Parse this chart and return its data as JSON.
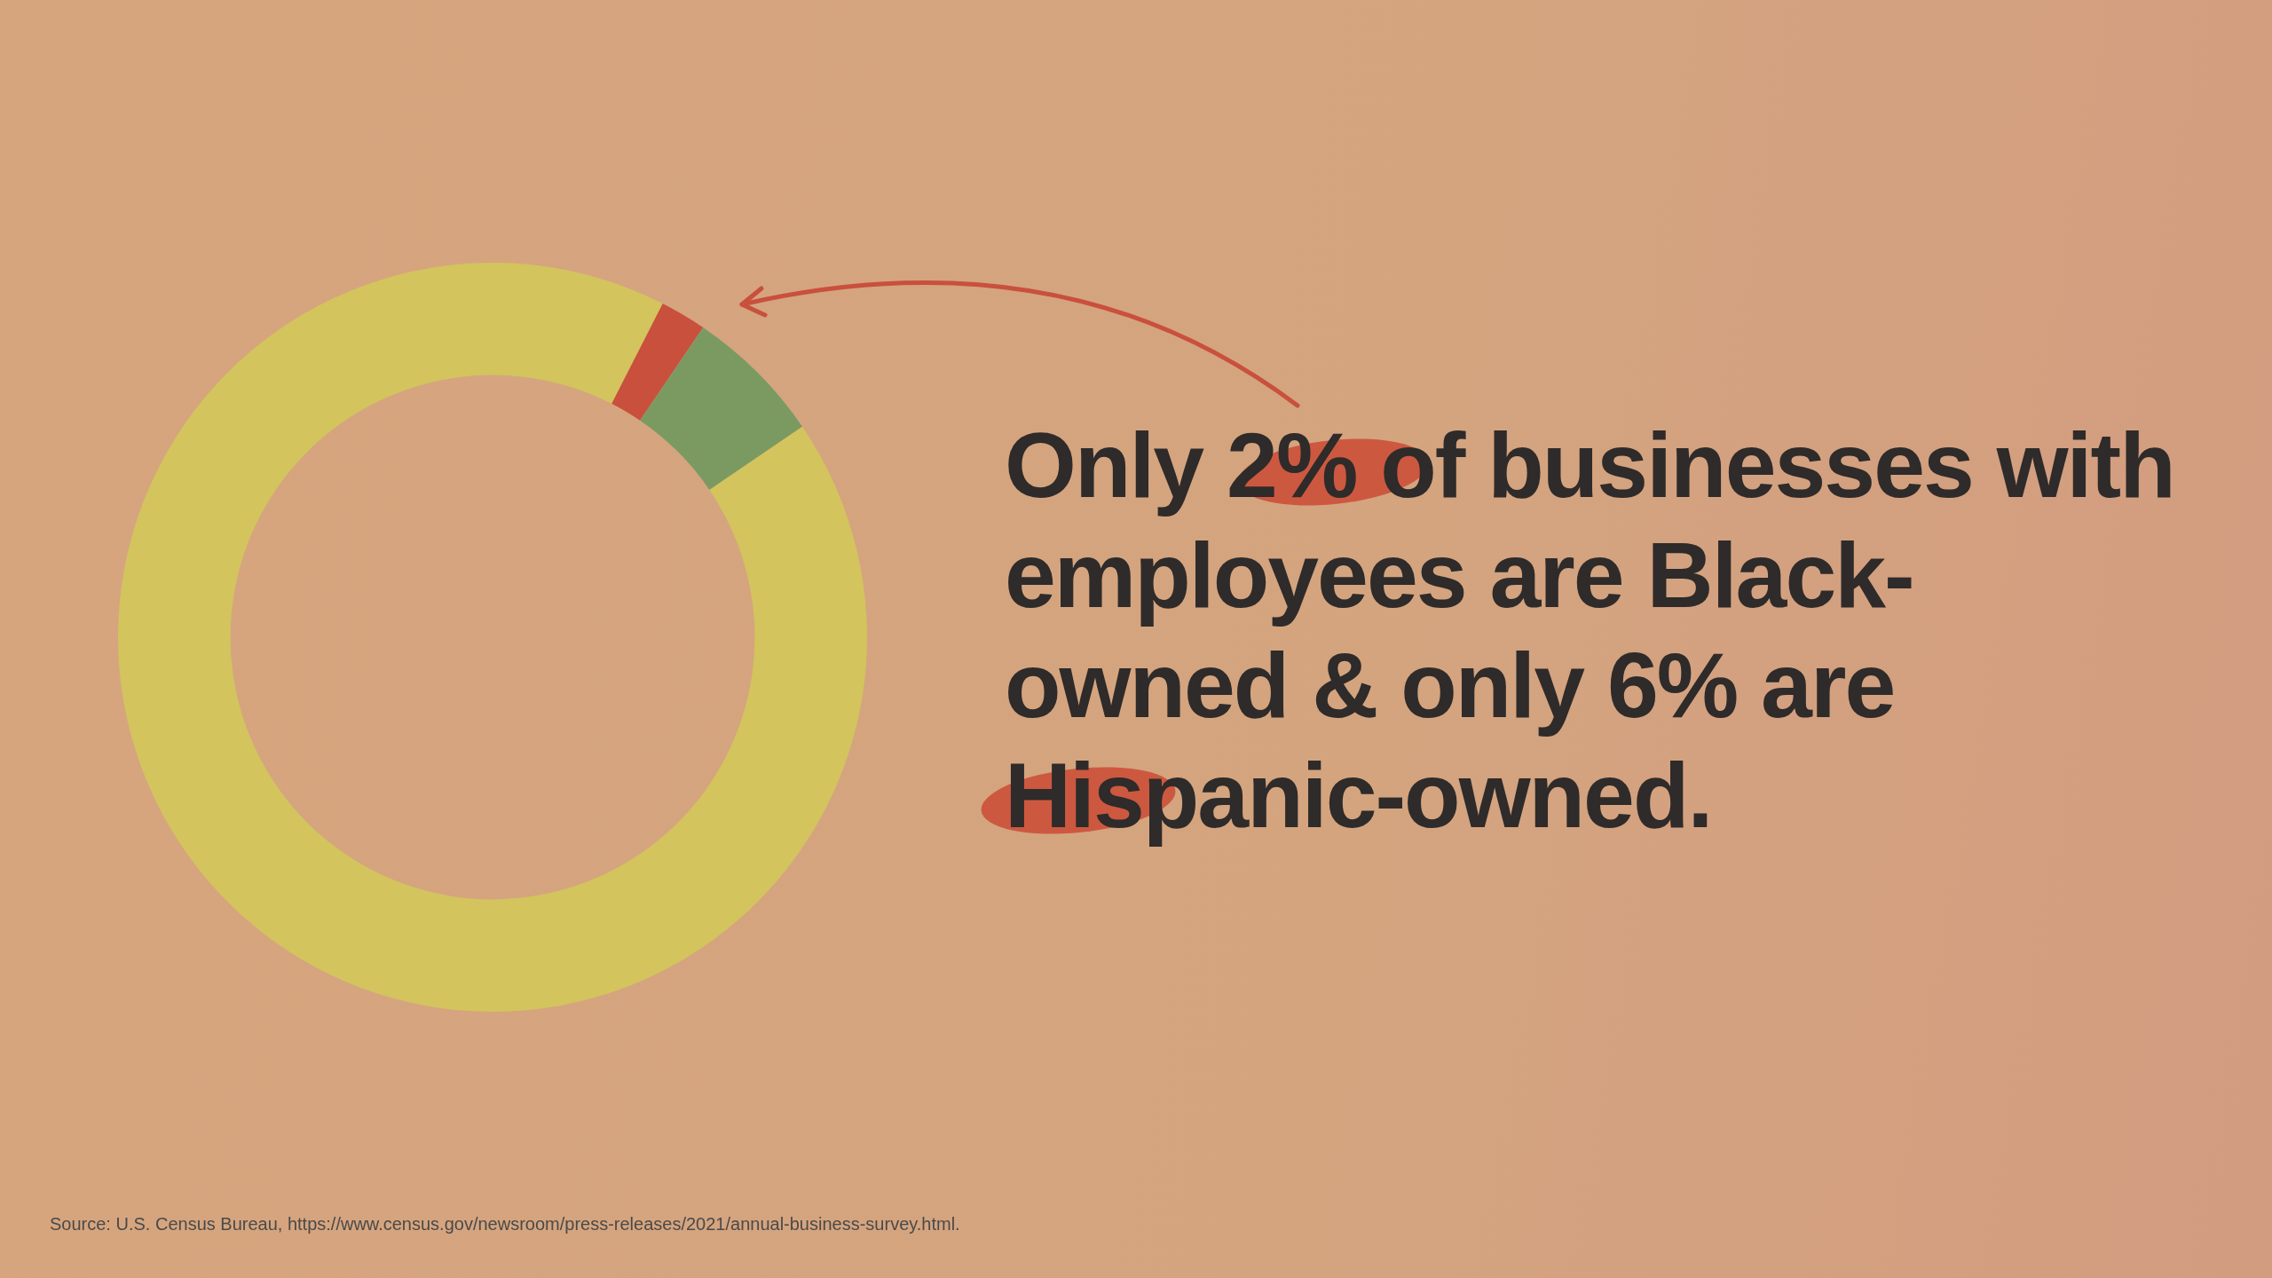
{
  "chart_data": {
    "type": "donut",
    "title": "Only 2% of businesses with employees are Black-owned & only 6% are Hispanic-owned.",
    "categories": [
      null,
      null,
      null
    ],
    "values": [
      2,
      6,
      92
    ],
    "colors": [
      "#c9503c",
      "#7b9a62",
      "#d3c45e"
    ],
    "legend": false,
    "annotations": [
      "Source: U.S. Census Bureau, https://www.census.gov/newsroom/press-releases/2021/annual-business-survey.html."
    ]
  }
}
